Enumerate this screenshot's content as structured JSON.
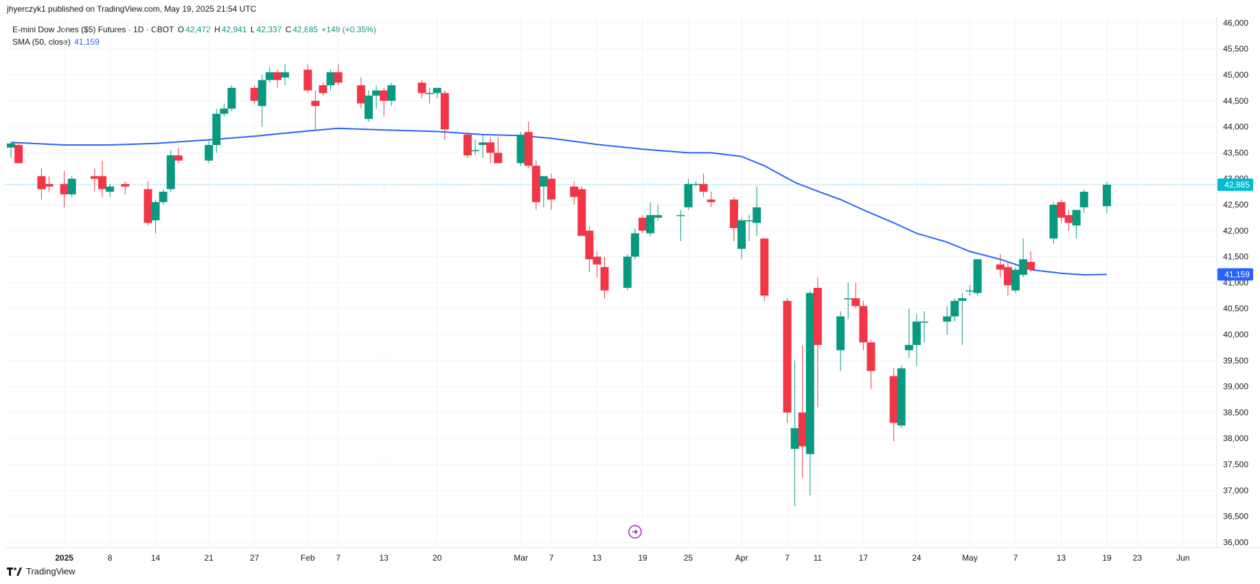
{
  "header": {
    "publisher": "jhyerczyk1 published on TradingView.com, May 19, 2025 21:54 UTC"
  },
  "legend": {
    "symbol": "E-mini Dow Jones ($5) Futures · 1D · CBOT",
    "open_label": "O",
    "open": "42,472",
    "high_label": "H",
    "high": "42,941",
    "low_label": "L",
    "low": "42,337",
    "close_label": "C",
    "close": "42,885",
    "change": "+149 (+0.35%)",
    "sma_name": "SMA (50, close)",
    "sma_value": "41,159"
  },
  "footer": {
    "brand": "TradingView",
    "logo_icon": "tradingview-logo-icon"
  },
  "colors": {
    "up": "#089981",
    "down": "#f23645",
    "sma": "#2962ff",
    "last_price": "#00bcd4"
  },
  "chart_data": {
    "type": "candlestick",
    "title": "E-mini Dow Jones ($5) Futures · 1D · CBOT",
    "ylim": [
      35900,
      46150
    ],
    "y_ticks": [
      {
        "v": 46000,
        "label": "46,000"
      },
      {
        "v": 45500,
        "label": "45,500"
      },
      {
        "v": 45000,
        "label": "45,000"
      },
      {
        "v": 44500,
        "label": "44,500"
      },
      {
        "v": 44000,
        "label": "44,000"
      },
      {
        "v": 43500,
        "label": "43,500"
      },
      {
        "v": 43000,
        "label": "43,000"
      },
      {
        "v": 42500,
        "label": "42,500"
      },
      {
        "v": 42000,
        "label": "42,000"
      },
      {
        "v": 41500,
        "label": "41,500"
      },
      {
        "v": 41000,
        "label": "41,000"
      },
      {
        "v": 40500,
        "label": "40,500"
      },
      {
        "v": 40000,
        "label": "40,000"
      },
      {
        "v": 39500,
        "label": "39,500"
      },
      {
        "v": 39000,
        "label": "39,000"
      },
      {
        "v": 38500,
        "label": "38,500"
      },
      {
        "v": 38000,
        "label": "38,000"
      },
      {
        "v": 37500,
        "label": "37,500"
      },
      {
        "v": 37000,
        "label": "37,000"
      },
      {
        "v": 36500,
        "label": "36,500"
      },
      {
        "v": 36000,
        "label": "36,000"
      }
    ],
    "x_ticks": [
      {
        "date": "2025-01-02",
        "label": "2025",
        "bold": true
      },
      {
        "date": "2025-01-08",
        "label": "8"
      },
      {
        "date": "2025-01-14",
        "label": "14"
      },
      {
        "date": "2025-01-21",
        "label": "21"
      },
      {
        "date": "2025-01-27",
        "label": "27"
      },
      {
        "date": "2025-02-03",
        "label": "Feb"
      },
      {
        "date": "2025-02-07",
        "label": "7"
      },
      {
        "date": "2025-02-13",
        "label": "13"
      },
      {
        "date": "2025-02-20",
        "label": "20"
      },
      {
        "date": "2025-03-03",
        "label": "Mar"
      },
      {
        "date": "2025-03-07",
        "label": "7"
      },
      {
        "date": "2025-03-13",
        "label": "13"
      },
      {
        "date": "2025-03-19",
        "label": "19"
      },
      {
        "date": "2025-03-25",
        "label": "25"
      },
      {
        "date": "2025-04-01",
        "label": "Apr"
      },
      {
        "date": "2025-04-07",
        "label": "7"
      },
      {
        "date": "2025-04-11",
        "label": "11"
      },
      {
        "date": "2025-04-17",
        "label": "17"
      },
      {
        "date": "2025-04-24",
        "label": "24"
      },
      {
        "date": "2025-05-01",
        "label": "May"
      },
      {
        "date": "2025-05-07",
        "label": "7"
      },
      {
        "date": "2025-05-13",
        "label": "13"
      },
      {
        "date": "2025-05-19",
        "label": "19"
      },
      {
        "date": "2025-05-23",
        "label": "23"
      },
      {
        "date": "2025-05-29",
        "label": "Jun"
      }
    ],
    "last_price": {
      "value": 42885,
      "label": "42,885"
    },
    "sma_last": {
      "value": 41159,
      "label": "41,159"
    },
    "candles": [
      {
        "date": "2024-12-26",
        "o": 43600,
        "h": 43700,
        "l": 43400,
        "c": 43680
      },
      {
        "date": "2024-12-27",
        "o": 43650,
        "h": 43700,
        "l": 43350,
        "c": 43300
      },
      {
        "date": "2024-12-30",
        "o": 43050,
        "h": 43200,
        "l": 42600,
        "c": 42800
      },
      {
        "date": "2024-12-31",
        "o": 42900,
        "h": 43050,
        "l": 42750,
        "c": 42850
      },
      {
        "date": "2025-01-02",
        "o": 42900,
        "h": 43150,
        "l": 42450,
        "c": 42700
      },
      {
        "date": "2025-01-03",
        "o": 42700,
        "h": 43050,
        "l": 42650,
        "c": 43000
      },
      {
        "date": "2025-01-06",
        "o": 43050,
        "h": 43200,
        "l": 42750,
        "c": 43000
      },
      {
        "date": "2025-01-07",
        "o": 43050,
        "h": 43350,
        "l": 42650,
        "c": 42800
      },
      {
        "date": "2025-01-08",
        "o": 42750,
        "h": 42900,
        "l": 42650,
        "c": 42850
      },
      {
        "date": "2025-01-10",
        "o": 42900,
        "h": 42950,
        "l": 42700,
        "c": 42850
      },
      {
        "date": "2025-01-13",
        "o": 42800,
        "h": 42950,
        "l": 42100,
        "c": 42150
      },
      {
        "date": "2025-01-14",
        "o": 42200,
        "h": 42600,
        "l": 41950,
        "c": 42550
      },
      {
        "date": "2025-01-15",
        "o": 42550,
        "h": 42800,
        "l": 42500,
        "c": 42750
      },
      {
        "date": "2025-01-16",
        "o": 42800,
        "h": 43550,
        "l": 42750,
        "c": 43450
      },
      {
        "date": "2025-01-17",
        "o": 43450,
        "h": 43600,
        "l": 43300,
        "c": 43350
      },
      {
        "date": "2025-01-21",
        "o": 43350,
        "h": 43750,
        "l": 43300,
        "c": 43650
      },
      {
        "date": "2025-01-22",
        "o": 43650,
        "h": 44350,
        "l": 43500,
        "c": 44250
      },
      {
        "date": "2025-01-23",
        "o": 44250,
        "h": 44450,
        "l": 44200,
        "c": 44350
      },
      {
        "date": "2025-01-24",
        "o": 44350,
        "h": 44800,
        "l": 44300,
        "c": 44750
      },
      {
        "date": "2025-01-27",
        "o": 44750,
        "h": 44800,
        "l": 44450,
        "c": 44500
      },
      {
        "date": "2025-01-28",
        "o": 44400,
        "h": 45000,
        "l": 44000,
        "c": 44900
      },
      {
        "date": "2025-01-29",
        "o": 44900,
        "h": 45150,
        "l": 44850,
        "c": 45050
      },
      {
        "date": "2025-01-30",
        "o": 45050,
        "h": 45100,
        "l": 44750,
        "c": 44900
      },
      {
        "date": "2025-01-31",
        "o": 44950,
        "h": 45200,
        "l": 44800,
        "c": 45050
      },
      {
        "date": "2025-02-03",
        "o": 45100,
        "h": 45200,
        "l": 44650,
        "c": 44700
      },
      {
        "date": "2025-02-04",
        "o": 44500,
        "h": 44700,
        "l": 43950,
        "c": 44400
      },
      {
        "date": "2025-02-05",
        "o": 44800,
        "h": 44850,
        "l": 44600,
        "c": 44650
      },
      {
        "date": "2025-02-06",
        "o": 44800,
        "h": 45100,
        "l": 44700,
        "c": 45050
      },
      {
        "date": "2025-02-07",
        "o": 45050,
        "h": 45200,
        "l": 44800,
        "c": 44850
      },
      {
        "date": "2025-02-10",
        "o": 44800,
        "h": 44950,
        "l": 44350,
        "c": 44450
      },
      {
        "date": "2025-02-11",
        "o": 44150,
        "h": 44700,
        "l": 44100,
        "c": 44600
      },
      {
        "date": "2025-02-12",
        "o": 44600,
        "h": 44800,
        "l": 44350,
        "c": 44700
      },
      {
        "date": "2025-02-13",
        "o": 44700,
        "h": 44750,
        "l": 44200,
        "c": 44500
      },
      {
        "date": "2025-02-14",
        "o": 44500,
        "h": 44850,
        "l": 44400,
        "c": 44800
      },
      {
        "date": "2025-02-18",
        "o": 44850,
        "h": 44900,
        "l": 44550,
        "c": 44650
      },
      {
        "date": "2025-02-19",
        "o": 44650,
        "h": 44750,
        "l": 44450,
        "c": 44650
      },
      {
        "date": "2025-02-20",
        "o": 44650,
        "h": 44750,
        "l": 44550,
        "c": 44750
      },
      {
        "date": "2025-02-21",
        "o": 44650,
        "h": 44700,
        "l": 43750,
        "c": 43950
      },
      {
        "date": "2025-02-24",
        "o": 43850,
        "h": 43900,
        "l": 43400,
        "c": 43450
      },
      {
        "date": "2025-02-25",
        "o": 43550,
        "h": 43750,
        "l": 43450,
        "c": 43550
      },
      {
        "date": "2025-02-26",
        "o": 43650,
        "h": 43850,
        "l": 43400,
        "c": 43700
      },
      {
        "date": "2025-02-27",
        "o": 43700,
        "h": 43800,
        "l": 43300,
        "c": 43500
      },
      {
        "date": "2025-02-28",
        "o": 43500,
        "h": 43800,
        "l": 43300,
        "c": 43300
      },
      {
        "date": "2025-03-03",
        "o": 43300,
        "h": 43900,
        "l": 43250,
        "c": 43850
      },
      {
        "date": "2025-03-04",
        "o": 43900,
        "h": 44100,
        "l": 43200,
        "c": 43250
      },
      {
        "date": "2025-03-05",
        "o": 43250,
        "h": 43350,
        "l": 42400,
        "c": 42550
      },
      {
        "date": "2025-03-06",
        "o": 42850,
        "h": 43000,
        "l": 42450,
        "c": 43050
      },
      {
        "date": "2025-03-07",
        "o": 43000,
        "h": 43100,
        "l": 42400,
        "c": 42600
      },
      {
        "date": "2025-03-10",
        "o": 42850,
        "h": 42950,
        "l": 42500,
        "c": 42650
      },
      {
        "date": "2025-03-11",
        "o": 42800,
        "h": 42850,
        "l": 42000,
        "c": 41900
      },
      {
        "date": "2025-03-12",
        "o": 42000,
        "h": 42100,
        "l": 41200,
        "c": 41450
      },
      {
        "date": "2025-03-13",
        "o": 41500,
        "h": 41600,
        "l": 41100,
        "c": 41350
      },
      {
        "date": "2025-03-14",
        "o": 41300,
        "h": 41500,
        "l": 40700,
        "c": 40850
      },
      {
        "date": "2025-03-17",
        "o": 40900,
        "h": 41550,
        "l": 40850,
        "c": 41500
      },
      {
        "date": "2025-03-18",
        "o": 41500,
        "h": 42050,
        "l": 41450,
        "c": 41950
      },
      {
        "date": "2025-03-19",
        "o": 42250,
        "h": 42300,
        "l": 41950,
        "c": 42000
      },
      {
        "date": "2025-03-20",
        "o": 41950,
        "h": 42550,
        "l": 41900,
        "c": 42300
      },
      {
        "date": "2025-03-21",
        "o": 42250,
        "h": 42500,
        "l": 42200,
        "c": 42300
      },
      {
        "date": "2025-03-24",
        "o": 42300,
        "h": 42400,
        "l": 41800,
        "c": 42300
      },
      {
        "date": "2025-03-25",
        "o": 42450,
        "h": 43000,
        "l": 42400,
        "c": 42900
      },
      {
        "date": "2025-03-26",
        "o": 42900,
        "h": 42950,
        "l": 42850,
        "c": 42900
      },
      {
        "date": "2025-03-27",
        "o": 42900,
        "h": 43100,
        "l": 42650,
        "c": 42750
      },
      {
        "date": "2025-03-28",
        "o": 42600,
        "h": 42750,
        "l": 42450,
        "c": 42550
      },
      {
        "date": "2025-03-31",
        "o": 42600,
        "h": 42650,
        "l": 41800,
        "c": 42050
      },
      {
        "date": "2025-04-01",
        "o": 41650,
        "h": 42250,
        "l": 41450,
        "c": 42200
      },
      {
        "date": "2025-04-02",
        "o": 42200,
        "h": 42300,
        "l": 41800,
        "c": 42200
      },
      {
        "date": "2025-04-03",
        "o": 42150,
        "h": 42850,
        "l": 41900,
        "c": 42450
      },
      {
        "date": "2025-04-04",
        "o": 41850,
        "h": 41850,
        "l": 40650,
        "c": 40750
      },
      {
        "date": "2025-04-07",
        "o": 40650,
        "h": 40700,
        "l": 38300,
        "c": 38500
      },
      {
        "date": "2025-04-08",
        "o": 37800,
        "h": 39500,
        "l": 36700,
        "c": 38200
      },
      {
        "date": "2025-04-09",
        "o": 38500,
        "h": 39800,
        "l": 37250,
        "c": 37850
      },
      {
        "date": "2025-04-10",
        "o": 37700,
        "h": 40850,
        "l": 36900,
        "c": 40800
      },
      {
        "date": "2025-04-11",
        "o": 40900,
        "h": 41100,
        "l": 38600,
        "c": 39800
      },
      {
        "date": "2025-04-14",
        "o": 39700,
        "h": 40450,
        "l": 39300,
        "c": 40350
      },
      {
        "date": "2025-04-15",
        "o": 40700,
        "h": 41000,
        "l": 40300,
        "c": 40700
      },
      {
        "date": "2025-04-16",
        "o": 40700,
        "h": 41000,
        "l": 40500,
        "c": 40550
      },
      {
        "date": "2025-04-17",
        "o": 40550,
        "h": 40650,
        "l": 39700,
        "c": 39850
      },
      {
        "date": "2025-04-18",
        "o": 39850,
        "h": 39900,
        "l": 38950,
        "c": 39300
      },
      {
        "date": "2025-04-21",
        "o": 39200,
        "h": 39350,
        "l": 37950,
        "c": 38300
      },
      {
        "date": "2025-04-22",
        "o": 38250,
        "h": 39400,
        "l": 38200,
        "c": 39350
      },
      {
        "date": "2025-04-23",
        "o": 39700,
        "h": 40500,
        "l": 39550,
        "c": 39800
      },
      {
        "date": "2025-04-24",
        "o": 39800,
        "h": 40400,
        "l": 39400,
        "c": 40250
      },
      {
        "date": "2025-04-25",
        "o": 40250,
        "h": 40450,
        "l": 39850,
        "c": 40250
      },
      {
        "date": "2025-04-28",
        "o": 40250,
        "h": 40550,
        "l": 40000,
        "c": 40350
      },
      {
        "date": "2025-04-29",
        "o": 40350,
        "h": 40700,
        "l": 40250,
        "c": 40650
      },
      {
        "date": "2025-04-30",
        "o": 40650,
        "h": 40800,
        "l": 39800,
        "c": 40700
      },
      {
        "date": "2025-05-01",
        "o": 40850,
        "h": 40950,
        "l": 40750,
        "c": 40850
      },
      {
        "date": "2025-05-02",
        "o": 40800,
        "h": 41450,
        "l": 40750,
        "c": 41450
      },
      {
        "date": "2025-05-05",
        "o": 41350,
        "h": 41550,
        "l": 41100,
        "c": 41250
      },
      {
        "date": "2025-05-06",
        "o": 41300,
        "h": 41400,
        "l": 40750,
        "c": 40950
      },
      {
        "date": "2025-05-07",
        "o": 40850,
        "h": 41300,
        "l": 40800,
        "c": 41250
      },
      {
        "date": "2025-05-08",
        "o": 41150,
        "h": 41850,
        "l": 41100,
        "c": 41450
      },
      {
        "date": "2025-05-09",
        "o": 41400,
        "h": 41600,
        "l": 41200,
        "c": 41250
      },
      {
        "date": "2025-05-12",
        "o": 41850,
        "h": 42550,
        "l": 41750,
        "c": 42500
      },
      {
        "date": "2025-05-13",
        "o": 42550,
        "h": 42600,
        "l": 42150,
        "c": 42250
      },
      {
        "date": "2025-05-14",
        "o": 42300,
        "h": 42400,
        "l": 42000,
        "c": 42150
      },
      {
        "date": "2025-05-15",
        "o": 42100,
        "h": 42400,
        "l": 41850,
        "c": 42400
      },
      {
        "date": "2025-05-16",
        "o": 42450,
        "h": 42800,
        "l": 42350,
        "c": 42750
      },
      {
        "date": "2025-05-19",
        "o": 42472,
        "h": 42941,
        "l": 42337,
        "c": 42885
      }
    ],
    "sma": [
      {
        "date": "2024-12-26",
        "v": 43700
      },
      {
        "date": "2025-01-02",
        "v": 43650
      },
      {
        "date": "2025-01-08",
        "v": 43650
      },
      {
        "date": "2025-01-14",
        "v": 43680
      },
      {
        "date": "2025-01-21",
        "v": 43750
      },
      {
        "date": "2025-01-27",
        "v": 43820
      },
      {
        "date": "2025-02-03",
        "v": 43920
      },
      {
        "date": "2025-02-07",
        "v": 43970
      },
      {
        "date": "2025-02-13",
        "v": 43940
      },
      {
        "date": "2025-02-20",
        "v": 43910
      },
      {
        "date": "2025-02-26",
        "v": 43850
      },
      {
        "date": "2025-03-03",
        "v": 43830
      },
      {
        "date": "2025-03-07",
        "v": 43780
      },
      {
        "date": "2025-03-13",
        "v": 43660
      },
      {
        "date": "2025-03-19",
        "v": 43570
      },
      {
        "date": "2025-03-25",
        "v": 43500
      },
      {
        "date": "2025-03-28",
        "v": 43500
      },
      {
        "date": "2025-04-01",
        "v": 43430
      },
      {
        "date": "2025-04-04",
        "v": 43250
      },
      {
        "date": "2025-04-08",
        "v": 42930
      },
      {
        "date": "2025-04-11",
        "v": 42760
      },
      {
        "date": "2025-04-14",
        "v": 42600
      },
      {
        "date": "2025-04-17",
        "v": 42400
      },
      {
        "date": "2025-04-21",
        "v": 42150
      },
      {
        "date": "2025-04-24",
        "v": 41950
      },
      {
        "date": "2025-04-28",
        "v": 41780
      },
      {
        "date": "2025-05-01",
        "v": 41600
      },
      {
        "date": "2025-05-05",
        "v": 41450
      },
      {
        "date": "2025-05-07",
        "v": 41350
      },
      {
        "date": "2025-05-09",
        "v": 41250
      },
      {
        "date": "2025-05-13",
        "v": 41180
      },
      {
        "date": "2025-05-16",
        "v": 41150
      },
      {
        "date": "2025-05-19",
        "v": 41159
      }
    ]
  }
}
